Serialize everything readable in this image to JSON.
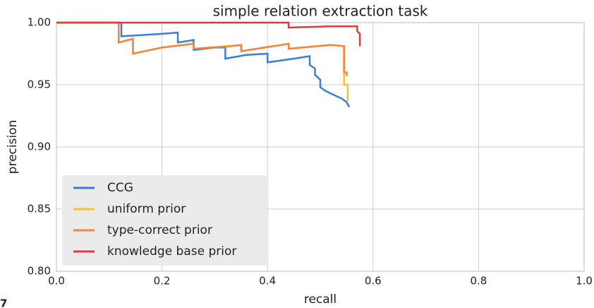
{
  "chart_data": {
    "type": "line",
    "title": "simple relation extraction task",
    "xlabel": "recall",
    "ylabel": "precision",
    "xlim": [
      0,
      1
    ],
    "ylim": [
      0.8,
      1
    ],
    "xticks": [
      {
        "value": 0,
        "label": "0.0"
      },
      0.2,
      0.4,
      0.6,
      0.8,
      {
        "value": 1,
        "label": "1.0"
      }
    ],
    "yticks": [
      {
        "value": 0.8,
        "label": "0.80"
      },
      0.85,
      {
        "value": 0.9,
        "label": "0.90"
      },
      0.95,
      {
        "value": 1,
        "label": "1.00"
      }
    ],
    "grid": true,
    "legend": "lower left",
    "series": [
      {
        "name": "CCG",
        "color": "#3a7fd5",
        "x": [
          0,
          0.123,
          0.123,
          0.2,
          0.23,
          0.23,
          0.26,
          0.26,
          0.3,
          0.32,
          0.32,
          0.36,
          0.4,
          0.4,
          0.45,
          0.48,
          0.48,
          0.49,
          0.49,
          0.5,
          0.5,
          0.51,
          0.52,
          0.53,
          0.54,
          0.55,
          0.555
        ],
        "values": [
          1,
          1,
          0.989,
          0.991,
          0.992,
          0.984,
          0.986,
          0.978,
          0.98,
          0.98,
          0.971,
          0.974,
          0.975,
          0.968,
          0.971,
          0.973,
          0.966,
          0.963,
          0.958,
          0.954,
          0.948,
          0.945,
          0.943,
          0.941,
          0.939,
          0.936,
          0.932
        ]
      },
      {
        "name": "uniform prior",
        "color": "#fbc02d",
        "x": [
          0,
          0.118,
          0.118,
          0.145,
          0.145,
          0.2,
          0.26,
          0.26,
          0.35,
          0.35,
          0.44,
          0.44,
          0.52,
          0.545,
          0.545,
          0.552,
          0.552
        ],
        "values": [
          1,
          1,
          0.984,
          0.987,
          0.975,
          0.98,
          0.983,
          0.979,
          0.982,
          0.977,
          0.983,
          0.979,
          0.982,
          0.981,
          0.95,
          0.95,
          0.937
        ]
      },
      {
        "name": "type-correct prior",
        "color": "#f5843a",
        "x": [
          0,
          0.118,
          0.118,
          0.145,
          0.145,
          0.2,
          0.26,
          0.26,
          0.33,
          0.35,
          0.35,
          0.44,
          0.44,
          0.52,
          0.545,
          0.545,
          0.55,
          0.55
        ],
        "values": [
          1,
          1,
          0.984,
          0.987,
          0.975,
          0.98,
          0.983,
          0.979,
          0.981,
          0.982,
          0.977,
          0.983,
          0.979,
          0.982,
          0.981,
          0.96,
          0.96,
          0.957
        ]
      },
      {
        "name": "knowledge base prior",
        "color": "#e8383d",
        "x": [
          0,
          0.44,
          0.44,
          0.52,
          0.57,
          0.57,
          0.575,
          0.575
        ],
        "values": [
          1,
          1,
          0.996,
          0.997,
          0.997,
          0.993,
          0.991,
          0.981
        ]
      }
    ]
  },
  "fragment": "7"
}
